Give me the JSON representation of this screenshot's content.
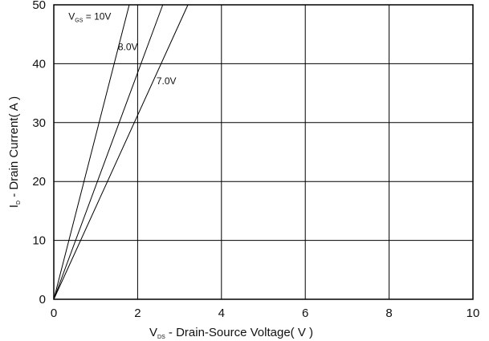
{
  "chart_data": {
    "type": "line",
    "xlabel": {
      "prefix": "V",
      "sub": "DS",
      "rest": " - Drain-Source Voltage( V )"
    },
    "ylabel": {
      "prefix": "I",
      "sub": "D",
      "rest": " - Drain Current( A )"
    },
    "xlim": [
      0,
      10
    ],
    "ylim": [
      0,
      50
    ],
    "x_ticks": [
      0,
      2,
      4,
      6,
      8,
      10
    ],
    "y_ticks": [
      0,
      10,
      20,
      30,
      40,
      50
    ],
    "x_tick_labels": [
      "0",
      "2",
      "4",
      "6",
      "8",
      "10"
    ],
    "y_tick_labels": [
      "0",
      "10",
      "20",
      "30",
      "40",
      "50"
    ],
    "grid": true,
    "series": [
      {
        "name": "10V",
        "x": [
          0,
          1.8
        ],
        "y": [
          0,
          50
        ]
      },
      {
        "name": "8.0V",
        "x": [
          0,
          2.6
        ],
        "y": [
          0,
          50
        ]
      },
      {
        "name": "7.0V",
        "x": [
          0,
          3.2
        ],
        "y": [
          0,
          50
        ]
      }
    ],
    "annotations": [
      {
        "prefix": "V",
        "sub": "GS",
        "rest": " = 10V",
        "x": 0.35,
        "y": 47.5
      },
      {
        "text": "8.0V",
        "x": 1.53,
        "y": 42.3
      },
      {
        "text": "7.0V",
        "x": 2.45,
        "y": 36.5
      }
    ]
  }
}
